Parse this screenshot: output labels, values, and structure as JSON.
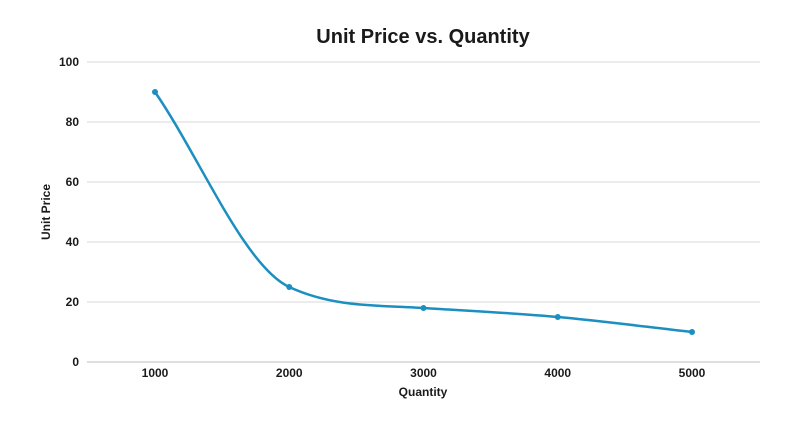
{
  "chart_data": {
    "type": "line",
    "title": "Unit Price vs. Quantity",
    "xlabel": "Quantity",
    "ylabel": "Unit Price",
    "x": [
      1000,
      2000,
      3000,
      4000,
      5000
    ],
    "x_tick_labels": [
      "1000",
      "2000",
      "3000",
      "4000",
      "5000"
    ],
    "y_ticks": [
      0,
      20,
      40,
      60,
      80,
      100
    ],
    "y_tick_labels": [
      "0",
      "20",
      "40",
      "60",
      "80",
      "100"
    ],
    "ylim": [
      0,
      100
    ],
    "grid": true,
    "legend": "none",
    "smooth": true,
    "series": [
      {
        "values": [
          90,
          25,
          18,
          15,
          10
        ],
        "color": "#1b8fc0"
      }
    ]
  }
}
